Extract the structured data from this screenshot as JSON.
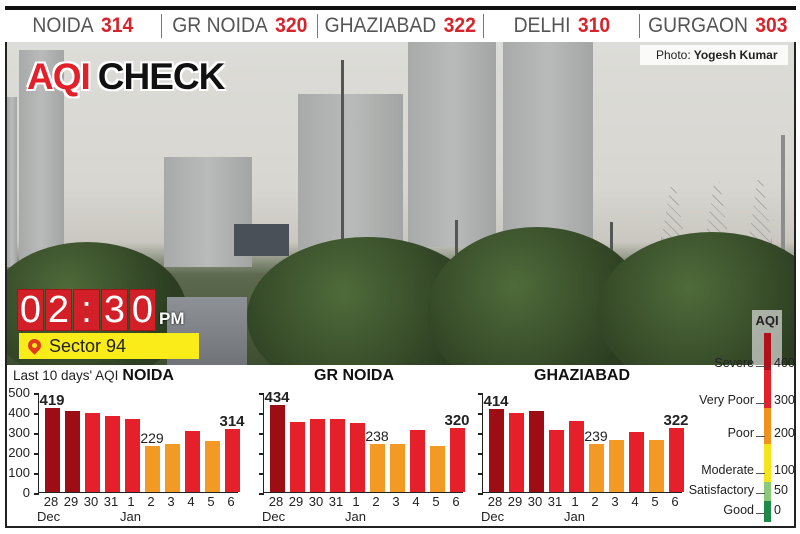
{
  "header": {
    "cities": [
      {
        "name": "NOIDA",
        "aqi": "314"
      },
      {
        "name": "GR NOIDA",
        "aqi": "320"
      },
      {
        "name": "GHAZIABAD",
        "aqi": "322"
      },
      {
        "name": "DELHI",
        "aqi": "310"
      },
      {
        "name": "GURGAON",
        "aqi": "303"
      }
    ]
  },
  "photo": {
    "title_part1": "AQI",
    "title_part2": "CHECK",
    "credit_label": "Photo:",
    "credit_name": "Yogesh Kumar",
    "time_digits": [
      "0",
      "2",
      ":",
      "3",
      "0"
    ],
    "time_suffix": "PM",
    "location": "Sector 94"
  },
  "charts_section": {
    "prefix": "Last 10 days' AQI"
  },
  "chart_data": [
    {
      "type": "bar",
      "title": "NOIDA",
      "subtitle": "Last 10 days' AQI",
      "categories": [
        "28 Dec",
        "29",
        "30",
        "31",
        "1 Jan",
        "2",
        "3",
        "4",
        "5",
        "6"
      ],
      "values": [
        419,
        405,
        395,
        380,
        365,
        229,
        240,
        305,
        255,
        314
      ],
      "labeled": {
        "0": "419",
        "5": "229",
        "9": "314"
      },
      "ylim": [
        0,
        500
      ],
      "yticks": [
        0,
        100,
        200,
        300,
        400,
        500
      ],
      "xlabel": "",
      "ylabel": "AQI"
    },
    {
      "type": "bar",
      "title": "GR NOIDA",
      "categories": [
        "28 Dec",
        "29",
        "30",
        "31",
        "1 Jan",
        "2",
        "3",
        "4",
        "5",
        "6"
      ],
      "values": [
        434,
        350,
        365,
        365,
        345,
        238,
        238,
        310,
        230,
        320
      ],
      "labeled": {
        "0": "434",
        "5": "238",
        "9": "320"
      },
      "ylim": [
        0,
        500
      ]
    },
    {
      "type": "bar",
      "title": "GHAZIABAD",
      "categories": [
        "28 Dec",
        "29",
        "30",
        "31",
        "1 Jan",
        "2",
        "3",
        "4",
        "5",
        "6"
      ],
      "values": [
        414,
        395,
        405,
        310,
        355,
        239,
        260,
        300,
        260,
        322
      ],
      "labeled": {
        "0": "414",
        "5": "239",
        "9": "322"
      },
      "ylim": [
        0,
        500
      ]
    }
  ],
  "x_ticks": [
    "28",
    "29",
    "30",
    "31",
    "1",
    "2",
    "3",
    "4",
    "5",
    "6"
  ],
  "month_labels": {
    "dec": "Dec",
    "jan": "Jan"
  },
  "y_ticks": [
    "500",
    "400",
    "300",
    "200",
    "100",
    "0"
  ],
  "legend": {
    "title": "AQI",
    "levels": [
      {
        "label": "Severe",
        "value": "400",
        "color": "#b0101a"
      },
      {
        "label": "Very Poor",
        "value": "300",
        "color": "#e0202b"
      },
      {
        "label": "Poor",
        "value": "200",
        "color": "#f0931e"
      },
      {
        "label": "Moderate",
        "value": "100",
        "color": "#f4e41a"
      },
      {
        "label": "Satisfactory",
        "value": "50",
        "color": "#8cc97a"
      },
      {
        "label": "Good",
        "value": "0",
        "color": "#1e8a4a"
      }
    ]
  },
  "colors": {
    "severe": "#9e0c14",
    "very_poor": "#e5202a",
    "poor": "#f29a24",
    "accent_red": "#d8232a",
    "location_bg": "#f9ec18"
  }
}
